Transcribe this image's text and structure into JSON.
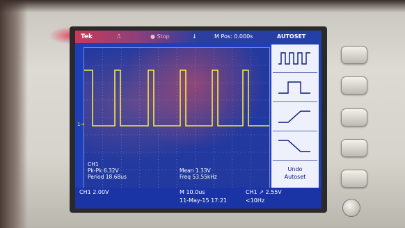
{
  "brand": "Tek",
  "header": {
    "trigger_status": "Stop",
    "position_label": "M Pos: 0.000s",
    "menu_title": "AUTOSET"
  },
  "menu": {
    "items": [
      {
        "icon": "square-wave-icon"
      },
      {
        "icon": "single-pulse-icon"
      },
      {
        "icon": "rising-edge-icon"
      },
      {
        "icon": "falling-edge-icon"
      },
      {
        "label_line1": "Undo",
        "label_line2": "Autoset"
      }
    ]
  },
  "measurements": {
    "channel": "CH1",
    "pk_pk": "Pk-Pk 6.32V",
    "period": "Period 18.68us",
    "mean": "Mean 1.33V",
    "freq": "Freq 53.55kHz"
  },
  "status": {
    "ch1_scale": "CH1  2.00V",
    "timebase": "M 10.0us",
    "trigger": "CH1 ↗ 2.55V",
    "date_time": "11-May-15 17:21",
    "trigger_freq": "<10Hz"
  },
  "ground_marker": "1→",
  "colors": {
    "screen_bg": "#1e3fb8",
    "trace": "#f3ec3a",
    "menu_bg": "#eef0fb",
    "text": "#ffffff"
  },
  "waveform": {
    "type": "pulse-train",
    "duty_cycle_fraction": 0.18,
    "cycles_visible": 5.3
  }
}
